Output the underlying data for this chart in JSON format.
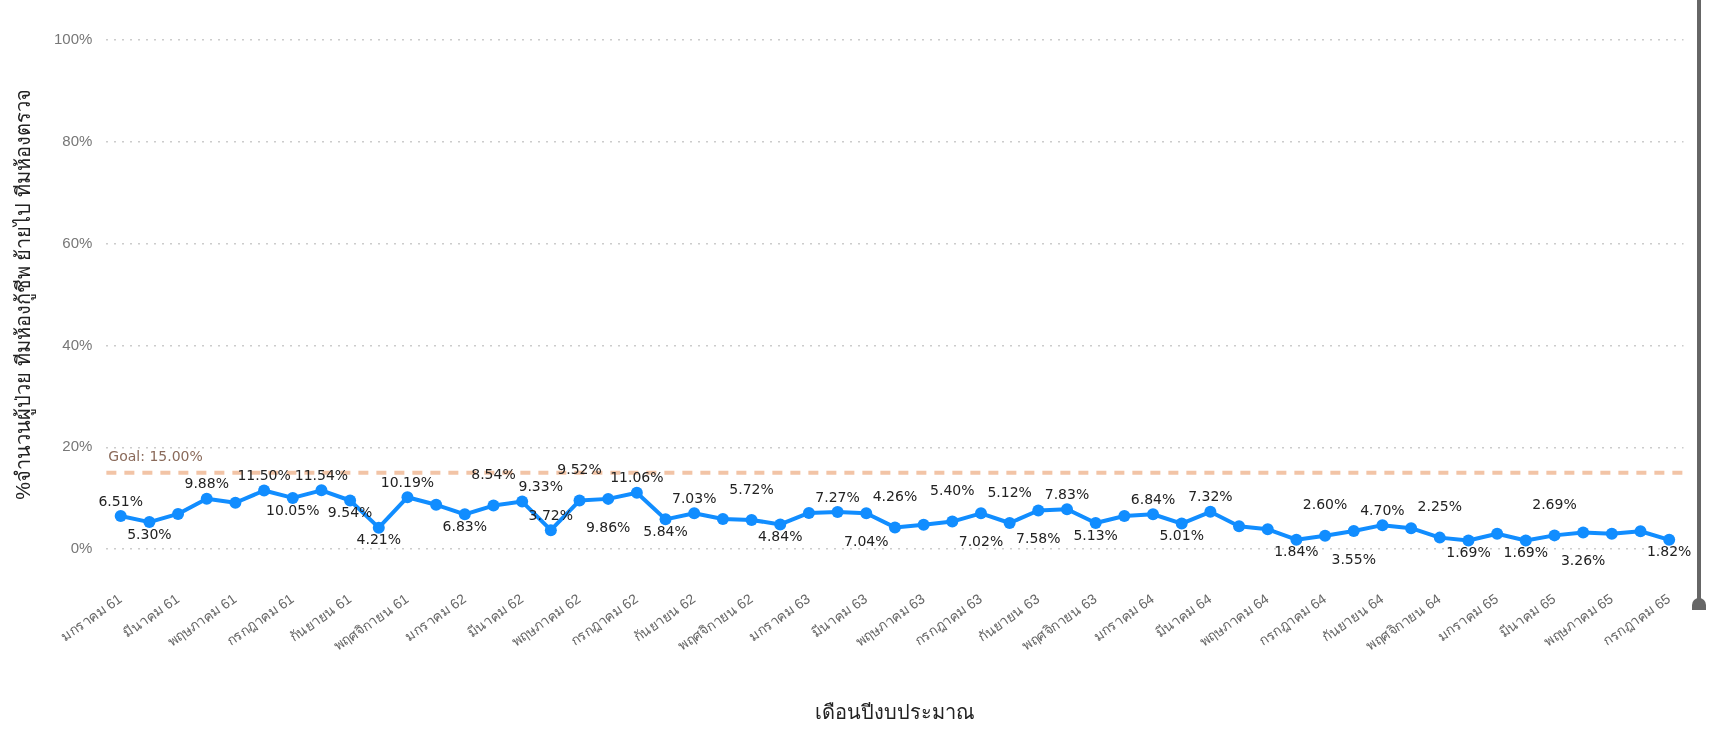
{
  "chart_data": {
    "type": "line",
    "xlabel": "เดือนปีงบประมาณ",
    "ylabel": "%จำนวนผู้ป่วย ทีมห้องกู้ชีพ ย้ายไป ทีมห้องตรวจ",
    "categories": [
      "มกราคม 61",
      null,
      "มีนาคม 61",
      null,
      "พฤษภาคม 61",
      null,
      "กรกฎาคม 61",
      null,
      "กันยายน 61",
      null,
      "พฤศจิกายน 61",
      null,
      "มกราคม 62",
      null,
      "มีนาคม 62",
      null,
      "พฤษภาคม 62",
      null,
      "กรกฎาคม 62",
      null,
      "กันยายน 62",
      null,
      "พฤศจิกายน 62",
      null,
      "มกราคม 63",
      null,
      "มีนาคม 63",
      null,
      "พฤษภาคม 63",
      null,
      "กรกฎาคม 63",
      null,
      "กันยายน 63",
      null,
      "พฤศจิกายน 63",
      null,
      "มกราคม 64",
      null,
      "มีนาคม 64",
      null,
      "พฤษภาคม 64",
      null,
      "กรกฎาคม 64",
      null,
      "กันยายน 64",
      null,
      "พฤศจิกายน 64",
      null,
      "มกราคม 65",
      null,
      "มีนาคม 65",
      null,
      "พฤษภาคม 65",
      null,
      "กรกฎาคม 65"
    ],
    "color": "#118dff",
    "values": [
      6.51,
      5.3,
      6.9,
      9.88,
      9.1,
      11.5,
      10.05,
      11.54,
      9.54,
      4.21,
      10.19,
      8.7,
      6.83,
      8.54,
      9.33,
      3.72,
      9.52,
      9.86,
      11.06,
      5.84,
      7.03,
      5.9,
      5.72,
      4.84,
      7.1,
      7.27,
      7.04,
      4.26,
      4.8,
      5.4,
      7.02,
      5.12,
      7.58,
      7.83,
      5.13,
      6.5,
      6.84,
      5.01,
      7.32,
      4.5,
      3.9,
      1.84,
      2.6,
      3.55,
      4.7,
      4.1,
      2.25,
      1.69,
      3.0,
      1.69,
      2.69,
      3.26,
      3.0,
      3.5,
      1.82
    ],
    "value_labels": [
      "6.51%",
      "5.30%",
      null,
      "9.88%",
      null,
      "11.50%",
      "10.05%",
      "11.54%",
      "9.54%",
      "4.21%",
      "10.19%",
      null,
      "6.83%",
      "8.54%",
      "9.33%",
      "3.72%",
      "9.52%",
      "9.86%",
      "11.06%",
      "5.84%",
      "7.03%",
      null,
      "5.72%",
      "4.84%",
      null,
      "7.27%",
      "7.04%",
      "4.26%",
      null,
      "5.40%",
      "7.02%",
      "5.12%",
      "7.58%",
      "7.83%",
      "5.13%",
      null,
      "6.84%",
      "5.01%",
      "7.32%",
      null,
      null,
      "1.84%",
      "2.60%",
      "3.55%",
      "4.70%",
      null,
      "2.25%",
      "1.69%",
      null,
      "1.69%",
      "2.69%",
      "3.26%",
      null,
      null,
      "1.82%"
    ],
    "ylim": [
      0,
      100
    ],
    "yticks": [
      {
        "value": 0,
        "label": "0%"
      },
      {
        "value": 20,
        "label": "20%"
      },
      {
        "value": 40,
        "label": "40%"
      },
      {
        "value": 60,
        "label": "60%"
      },
      {
        "value": 80,
        "label": "80%"
      },
      {
        "value": 100,
        "label": "100%"
      }
    ],
    "grid": "y",
    "marker": "circle",
    "ref_lines": [
      {
        "axis": "y",
        "value": 15,
        "label": "Goal: 15.00%",
        "color": "#f2c4a6",
        "line_style": "dashed"
      }
    ]
  }
}
